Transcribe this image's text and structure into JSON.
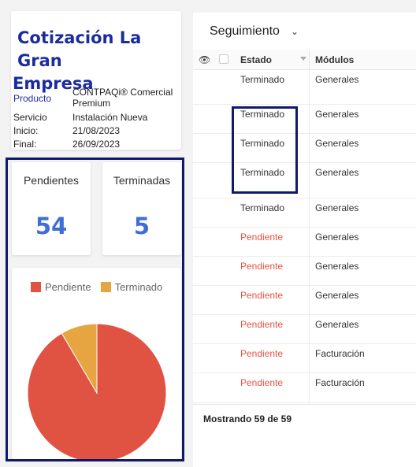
{
  "info": {
    "title_line1": "Cotización La Gran",
    "title_line2": "Empresa",
    "rows": [
      {
        "key": "Producto",
        "value": "CONTPAQi® Comercial Premium"
      },
      {
        "key": "Servicio",
        "value": "Instalación Nueva"
      },
      {
        "key": "Inicio:",
        "value": "21/08/2023"
      },
      {
        "key": "Final:",
        "value": "26/09/2023"
      }
    ]
  },
  "stats": {
    "pending_label": "Pendientes",
    "pending_value": "54",
    "done_label": "Terminadas",
    "done_value": "5"
  },
  "chart_data": {
    "type": "pie",
    "categories": [
      "Pendiente",
      "Terminado"
    ],
    "values": [
      54,
      5
    ],
    "colors": [
      "#e05342",
      "#e6a540"
    ],
    "legend_position": "top"
  },
  "table": {
    "title": "Seguimiento",
    "headers": {
      "estado": "Estado",
      "modulos": "Módulos"
    },
    "rows": [
      {
        "estado": "Terminado",
        "modulo": "Generales"
      },
      {
        "estado": "Terminado",
        "modulo": "Generales"
      },
      {
        "estado": "Terminado",
        "modulo": "Generales"
      },
      {
        "estado": "Terminado",
        "modulo": "Generales"
      },
      {
        "estado": "Terminado",
        "modulo": "Generales"
      },
      {
        "estado": "Pendiente",
        "modulo": "Generales"
      },
      {
        "estado": "Pendiente",
        "modulo": "Generales"
      },
      {
        "estado": "Pendiente",
        "modulo": "Generales"
      },
      {
        "estado": "Pendiente",
        "modulo": "Generales"
      },
      {
        "estado": "Pendiente",
        "modulo": "Facturación"
      },
      {
        "estado": "Pendiente",
        "modulo": "Facturación"
      }
    ],
    "footer": "Mostrando 59 de 59"
  },
  "icons": {
    "visibility": "eye-icon",
    "dropdown": "chevron-down-icon"
  }
}
